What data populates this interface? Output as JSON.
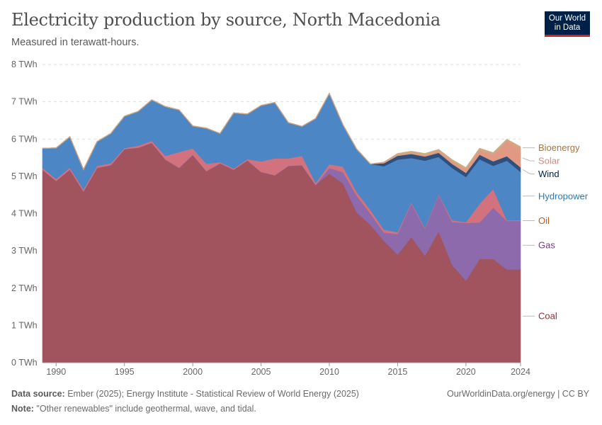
{
  "header": {
    "title": "Electricity production by source, North Macedonia",
    "subtitle": "Measured in terawatt-hours.",
    "logo_line1": "Our World",
    "logo_line2": "in Data"
  },
  "footer": {
    "source_label": "Data source:",
    "source_text": " Ember (2025); Energy Institute - Statistical Review of World Energy (2025)",
    "note_label": "Note:",
    "note_text": " \"Other renewables\" include geothermal, wave, and tidal.",
    "url": "OurWorldinData.org/energy | CC BY"
  },
  "chart_data": {
    "type": "area",
    "stacked": true,
    "title": "Electricity production by source, North Macedonia",
    "subtitle": "Measured in terawatt-hours.",
    "unit": "TWh",
    "ylim": [
      0,
      8
    ],
    "yticks": [
      0,
      1,
      2,
      3,
      4,
      5,
      6,
      7,
      8
    ],
    "ytick_labels": [
      "0 TWh",
      "1 TWh",
      "2 TWh",
      "3 TWh",
      "4 TWh",
      "5 TWh",
      "6 TWh",
      "7 TWh",
      "8 TWh"
    ],
    "xlim": [
      1989,
      2024
    ],
    "xticks": [
      1990,
      1995,
      2000,
      2005,
      2010,
      2015,
      2020,
      2024
    ],
    "x": [
      1989,
      1990,
      1991,
      1992,
      1993,
      1994,
      1995,
      1996,
      1997,
      1998,
      1999,
      2000,
      2001,
      2002,
      2003,
      2004,
      2005,
      2006,
      2007,
      2008,
      2009,
      2010,
      2011,
      2012,
      2013,
      2014,
      2015,
      2016,
      2017,
      2018,
      2019,
      2020,
      2021,
      2022,
      2023,
      2024
    ],
    "series": [
      {
        "name": "Coal",
        "color": "#a2545e",
        "label_color": "#883039",
        "values": [
          5.18,
          4.88,
          5.18,
          4.6,
          5.23,
          5.3,
          5.73,
          5.77,
          5.9,
          5.45,
          5.23,
          5.58,
          5.14,
          5.35,
          5.18,
          5.43,
          5.12,
          5.03,
          5.28,
          5.3,
          4.77,
          5.07,
          4.81,
          4.03,
          3.7,
          3.27,
          2.9,
          3.37,
          2.87,
          3.52,
          2.62,
          2.2,
          2.78,
          2.78,
          2.5,
          2.5
        ]
      },
      {
        "name": "Gas",
        "color": "#8c6aab",
        "label_color": "#6d3e91",
        "values": [
          0,
          0,
          0,
          0,
          0,
          0,
          0,
          0,
          0,
          0,
          0,
          0,
          0,
          0,
          0,
          0,
          0,
          0,
          0,
          0,
          0,
          0.15,
          0.3,
          0.45,
          0.3,
          0.22,
          0.55,
          0.9,
          0.72,
          0.98,
          1.15,
          1.55,
          0.98,
          1.38,
          1.3,
          1.3
        ]
      },
      {
        "name": "Oil",
        "color": "#d3727f",
        "label_color": "#c05917",
        "values": [
          0.05,
          0.05,
          0.05,
          0.05,
          0.05,
          0.05,
          0.03,
          0.05,
          0.05,
          0.1,
          0.42,
          0.17,
          0.2,
          0.03,
          0.03,
          0.03,
          0.28,
          0.45,
          0.2,
          0.25,
          0.05,
          0.1,
          0.15,
          0.1,
          0.1,
          0.08,
          0.05,
          0.03,
          0.03,
          0.02,
          0.05,
          0.02,
          0.5,
          0.5,
          0.02,
          0.02
        ]
      },
      {
        "name": "Hydropower",
        "color": "#4c86c5",
        "label_color": "#2c78b3",
        "values": [
          0.52,
          0.83,
          0.83,
          0.53,
          0.65,
          0.8,
          0.85,
          0.92,
          1.1,
          1.32,
          1.13,
          0.6,
          0.95,
          0.77,
          1.49,
          1.21,
          1.5,
          1.5,
          0.96,
          0.79,
          1.73,
          1.9,
          1.12,
          1.15,
          1.23,
          1.7,
          1.95,
          1.19,
          1.8,
          1.0,
          1.4,
          1.21,
          1.2,
          0.62,
          1.6,
          1.3
        ]
      },
      {
        "name": "Wind",
        "color": "#2f4f7d",
        "label_color": "#002147",
        "values": [
          0,
          0,
          0,
          0,
          0,
          0,
          0,
          0,
          0,
          0,
          0,
          0,
          0,
          0,
          0,
          0,
          0,
          0,
          0,
          0,
          0,
          0,
          0,
          0,
          0,
          0.08,
          0.1,
          0.11,
          0.11,
          0.11,
          0.11,
          0.11,
          0.12,
          0.12,
          0.12,
          0.12
        ]
      },
      {
        "name": "Solar",
        "color": "#e29983",
        "label_color": "#ce8d84",
        "values": [
          0,
          0,
          0,
          0,
          0,
          0,
          0,
          0,
          0,
          0,
          0,
          0,
          0,
          0,
          0,
          0,
          0,
          0,
          0,
          0,
          0,
          0,
          0,
          0,
          0,
          0.01,
          0.02,
          0.02,
          0.03,
          0.04,
          0.06,
          0.09,
          0.12,
          0.18,
          0.4,
          0.5
        ]
      },
      {
        "name": "Bioenergy",
        "color": "#d0a982",
        "label_color": "#9b7847",
        "values": [
          0,
          0,
          0,
          0,
          0,
          0,
          0,
          0,
          0,
          0,
          0,
          0,
          0,
          0,
          0,
          0,
          0,
          0,
          0,
          0,
          0,
          0,
          0,
          0,
          0,
          0.02,
          0.04,
          0.05,
          0.05,
          0.05,
          0.05,
          0.05,
          0.05,
          0.05,
          0.05,
          0.05
        ]
      }
    ]
  }
}
